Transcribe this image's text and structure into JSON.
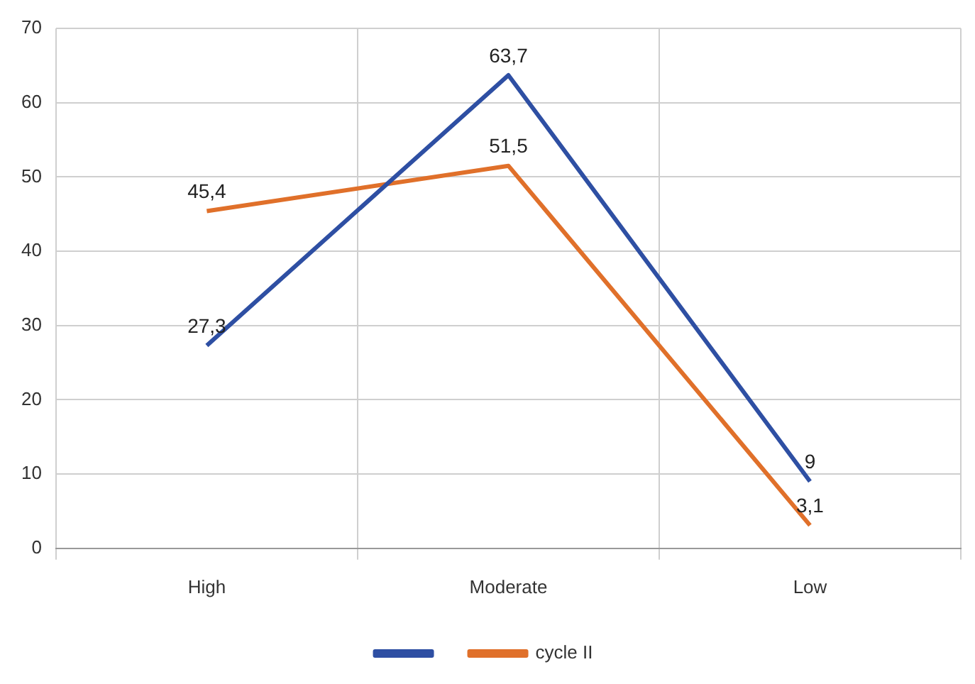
{
  "chart_data": {
    "type": "line",
    "categories": [
      "High",
      "Moderate",
      "Low"
    ],
    "series": [
      {
        "color": "#2e4fa3",
        "values": [
          27.3,
          63.7,
          9
        ],
        "value_labels": [
          "27,3",
          "63,7",
          "9"
        ]
      },
      {
        "name": "cycle II",
        "color": "#e0702a",
        "values": [
          45.4,
          51.5,
          3.1
        ],
        "value_labels": [
          "45,4",
          "51,5",
          "3,1"
        ]
      }
    ],
    "ylim": [
      0,
      70
    ],
    "yticks": [
      0,
      10,
      20,
      30,
      40,
      50,
      60,
      70
    ],
    "grid": true,
    "legend": "bottom",
    "marker": "none",
    "line_style": "solid"
  }
}
